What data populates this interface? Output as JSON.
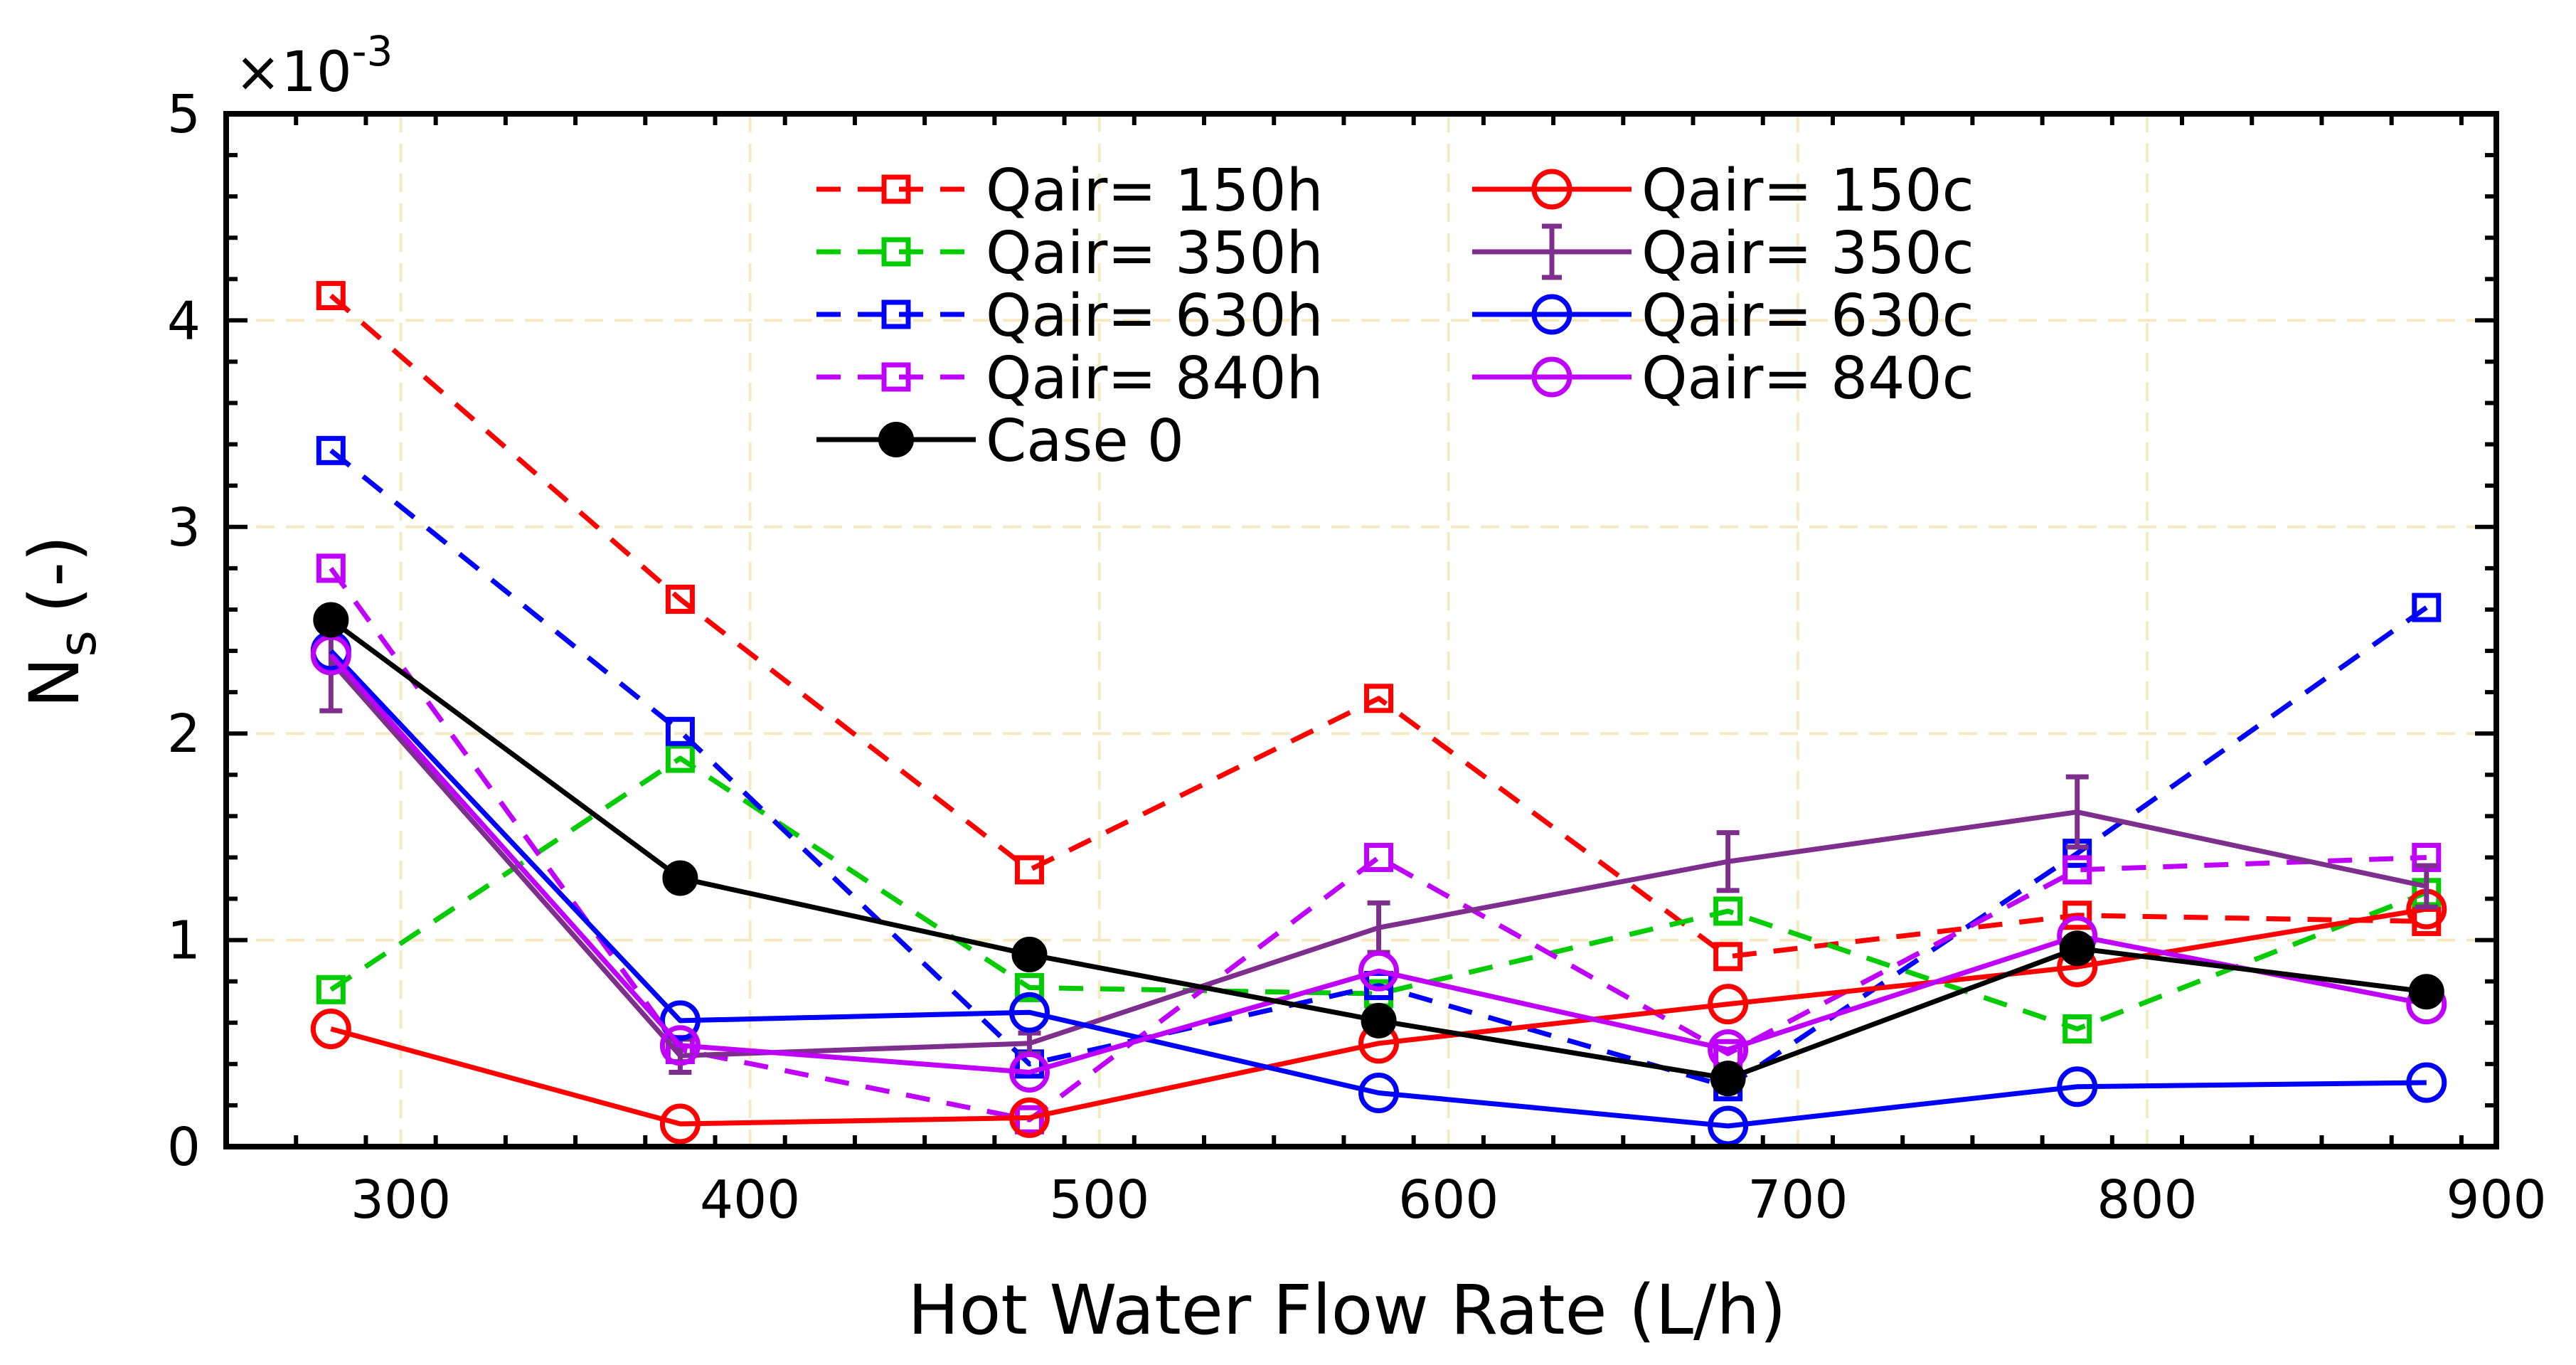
{
  "chart_data": {
    "type": "line",
    "title": "",
    "xlabel": "Hot Water Flow Rate (L/h)",
    "ylabel_main": "N",
    "ylabel_sub": "s",
    "ylabel_unit": "(-)",
    "y_multiplier_base": "×10",
    "y_multiplier_exp": "-3",
    "xlim": [
      250,
      900
    ],
    "ylim": [
      0,
      5
    ],
    "xticks": [
      "300",
      "400",
      "500",
      "600",
      "700",
      "800",
      "900"
    ],
    "xtick_values": [
      300,
      400,
      500,
      600,
      700,
      800,
      900
    ],
    "yticks": [
      "0",
      "1",
      "2",
      "3",
      "4",
      "5"
    ],
    "ytick_values": [
      0,
      1,
      2,
      3,
      4,
      5
    ],
    "grid": true,
    "legend_position": "top-center",
    "x": [
      280,
      380,
      480,
      580,
      680,
      780,
      880
    ],
    "series": [
      {
        "name": "Qair= 150h",
        "color": "#ff0000",
        "dash": true,
        "marker": "square",
        "values": [
          4.12,
          2.65,
          1.34,
          2.17,
          0.92,
          1.12,
          1.09
        ]
      },
      {
        "name": "Qair= 350h",
        "color": "#00cc00",
        "dash": true,
        "marker": "square",
        "values": [
          0.76,
          1.88,
          0.77,
          0.74,
          1.14,
          0.57,
          1.23
        ]
      },
      {
        "name": "Qair= 630h",
        "color": "#0000ff",
        "dash": true,
        "marker": "square",
        "values": [
          3.37,
          2.01,
          0.4,
          0.78,
          0.29,
          1.42,
          2.61
        ]
      },
      {
        "name": "Qair= 840h",
        "color": "#c000ff",
        "dash": true,
        "marker": "square",
        "values": [
          2.8,
          0.47,
          0.13,
          1.4,
          0.45,
          1.34,
          1.4
        ]
      },
      {
        "name": "Qair= 150c",
        "color": "#ff0000",
        "dash": false,
        "marker": "circle",
        "values": [
          0.57,
          0.11,
          0.14,
          0.5,
          0.69,
          0.87,
          1.15
        ]
      },
      {
        "name": "Qair= 350c",
        "color": "#7e2f8e",
        "dash": false,
        "marker": "errorbar",
        "values": [
          2.35,
          0.44,
          0.5,
          1.06,
          1.38,
          1.62,
          1.26
        ],
        "errors": [
          0.24,
          0.08,
          0.05,
          0.12,
          0.14,
          0.17,
          0.1
        ]
      },
      {
        "name": "Qair= 630c",
        "color": "#0000ff",
        "dash": false,
        "marker": "circle",
        "values": [
          2.4,
          0.61,
          0.65,
          0.26,
          0.1,
          0.29,
          0.31
        ]
      },
      {
        "name": "Qair= 840c",
        "color": "#c000ff",
        "dash": false,
        "marker": "circle",
        "values": [
          2.38,
          0.49,
          0.36,
          0.85,
          0.47,
          1.02,
          0.69
        ]
      },
      {
        "name": "Case 0",
        "color": "#000000",
        "dash": false,
        "marker": "filled-circle",
        "values": [
          2.55,
          1.3,
          0.93,
          0.61,
          0.33,
          0.96,
          0.75
        ]
      }
    ]
  }
}
